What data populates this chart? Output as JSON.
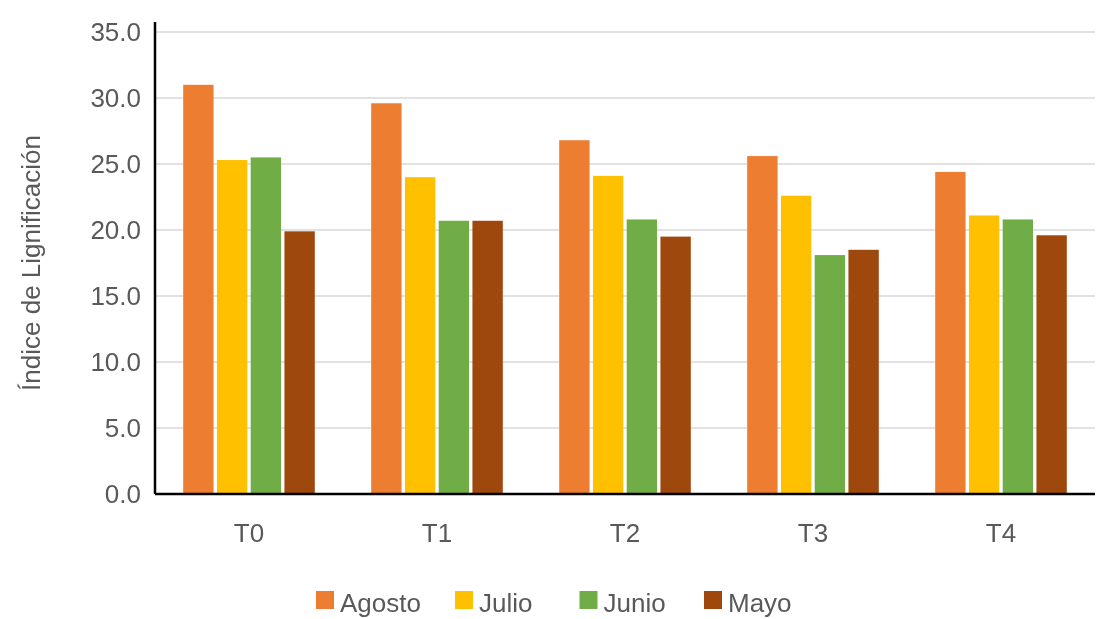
{
  "chart_data": {
    "type": "bar",
    "ylabel": "Índice de Lignificación",
    "categories": [
      "T0",
      "T1",
      "T2",
      "T3",
      "T4"
    ],
    "series": [
      {
        "name": "Agosto",
        "color": "#ed7d31",
        "values": [
          31.0,
          29.6,
          26.8,
          25.6,
          24.4
        ]
      },
      {
        "name": "Julio",
        "color": "#ffc000",
        "values": [
          25.3,
          24.0,
          24.1,
          22.6,
          21.1
        ]
      },
      {
        "name": "Junio",
        "color": "#70ad47",
        "values": [
          25.5,
          20.7,
          20.8,
          18.1,
          20.8
        ]
      },
      {
        "name": "Mayo",
        "color": "#9e480e",
        "values": [
          19.9,
          20.7,
          19.5,
          18.5,
          19.6
        ]
      }
    ],
    "ylim": [
      0,
      35
    ],
    "yticks": [
      {
        "value": 0,
        "label": "0.0"
      },
      {
        "value": 5,
        "label": "5.0"
      },
      {
        "value": 10,
        "label": "10.0"
      },
      {
        "value": 15,
        "label": "15.0"
      },
      {
        "value": 20,
        "label": "20.0"
      },
      {
        "value": 25,
        "label": "25.0"
      },
      {
        "value": 30,
        "label": "30.0"
      },
      {
        "value": 35,
        "label": "35.0"
      }
    ],
    "grid": "y",
    "legend": "bottom"
  }
}
